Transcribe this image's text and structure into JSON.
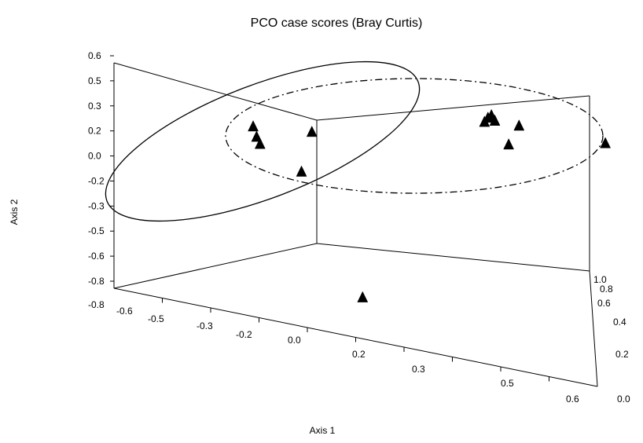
{
  "chart_data": {
    "type": "scatter",
    "projection": "3d",
    "title": "PCO case scores (Bray Curtis)",
    "xlabel": "Axis 1",
    "ylabel": "Axis 2",
    "zlabel": "",
    "y_ticks": [
      "0.6",
      "0.5",
      "0.3",
      "0.2",
      "0.0",
      "-0.2",
      "-0.3",
      "-0.5",
      "-0.6",
      "-0.8"
    ],
    "x_ticks": [
      "-0.8",
      "-0.6",
      "-0.5",
      "-0.3",
      "-0.2",
      "0.0",
      "0.2",
      "0.3",
      "0.5",
      "0.6"
    ],
    "z_ticks": [
      "1.0",
      "0.8",
      "0.6",
      "0.4",
      "0.2",
      "0.0"
    ],
    "ylim": [
      -0.8,
      0.6
    ],
    "xlim": [
      -0.8,
      0.6
    ],
    "zlim": [
      0.0,
      1.0
    ],
    "marker": "triangle",
    "marker_color": "#000000",
    "points": [
      {
        "x": -0.72,
        "y": 0.08,
        "z": 0.55
      },
      {
        "x": -0.71,
        "y": 0.02,
        "z": 0.55
      },
      {
        "x": -0.7,
        "y": -0.02,
        "z": 0.55
      },
      {
        "x": -0.55,
        "y": 0.12,
        "z": 0.55
      },
      {
        "x": -0.58,
        "y": -0.14,
        "z": 0.55
      },
      {
        "x": -0.05,
        "y": 0.4,
        "z": 0.55
      },
      {
        "x": -0.04,
        "y": 0.43,
        "z": 0.55
      },
      {
        "x": -0.03,
        "y": 0.45,
        "z": 0.55
      },
      {
        "x": -0.02,
        "y": 0.42,
        "z": 0.55
      },
      {
        "x": 0.05,
        "y": 0.42,
        "z": 0.55
      },
      {
        "x": 0.02,
        "y": 0.29,
        "z": 0.55
      },
      {
        "x": 0.3,
        "y": 0.42,
        "z": 0.55
      },
      {
        "x": 0.45,
        "y": 0.28,
        "z": 0.55
      },
      {
        "x": 0.48,
        "y": 0.19,
        "z": 0.55
      },
      {
        "x": 0.48,
        "y": 0.06,
        "z": 0.55
      },
      {
        "x": -0.08,
        "y": -0.55,
        "z": 0.0
      }
    ],
    "grid": false,
    "legend": "none"
  }
}
